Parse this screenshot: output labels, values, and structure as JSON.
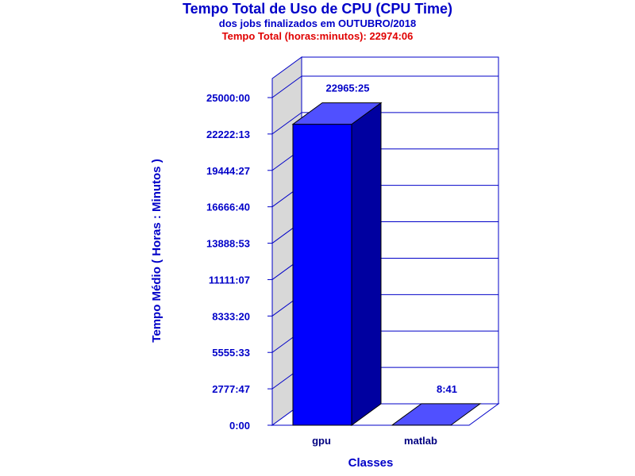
{
  "chart_data": {
    "type": "bar",
    "title": "Tempo Total de Uso de CPU (CPU Time)",
    "subtitle": "dos jobs finalizados em OUTUBRO/2018",
    "total_label": "Tempo Total (horas:minutos): 22974:06",
    "xlabel": "Classes",
    "ylabel": "Tempo Médio ( Horas : Minutos )",
    "categories": [
      "gpu",
      "matlab"
    ],
    "values_minutes": [
      1377925,
      521
    ],
    "value_labels": [
      "22965:25",
      "8:41"
    ],
    "yticks": [
      "0:00",
      "2777:47",
      "5555:33",
      "8333:20",
      "11111:07",
      "13888:53",
      "16666:40",
      "19444:27",
      "22222:13",
      "25000:00"
    ],
    "ylim_minutes": [
      0,
      1500000
    ],
    "grid": true,
    "three_d": true,
    "colors": {
      "bar_front": "#0000ff",
      "bar_top": "#5050ff",
      "bar_side": "#0000a0",
      "axis": "#0000c8",
      "wall": "#d8d8d8",
      "grid": "#0000c8"
    }
  }
}
